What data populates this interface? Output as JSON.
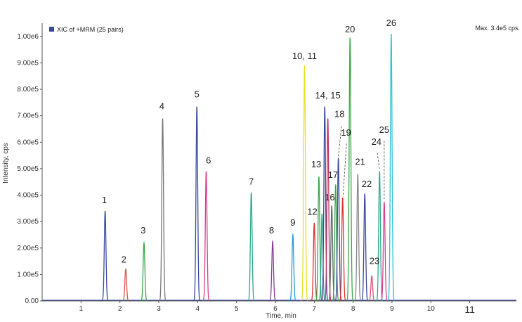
{
  "chart_data": {
    "type": "line",
    "legend": "XIC of +MRM (25 pairs)",
    "max_label": "Max. 3.4e5 cps.",
    "xlabel": "Time, min",
    "ylabel": "Intensity, cps",
    "xlim": [
      0,
      12.2
    ],
    "ylim": [
      0,
      1050000
    ],
    "x_ticks": [
      "1",
      "2",
      "3",
      "4",
      "5",
      "6",
      "7",
      "8",
      "9",
      "10",
      "11"
    ],
    "highlight_tick": "11",
    "highlight_color": "#c0392b",
    "y_ticks": [
      "0.00",
      "1.00e5",
      "2.00e5",
      "3.00e5",
      "4.00e5",
      "5.00e5",
      "6.00e5",
      "7.00e5",
      "8.00e5",
      "9.00e5",
      "1.00e6"
    ],
    "peaks": [
      {
        "t": 1.62,
        "h": 340000,
        "color": "#3a4a9c"
      },
      {
        "t": 2.15,
        "h": 120000,
        "color": "#e05050"
      },
      {
        "t": 2.62,
        "h": 220000,
        "color": "#3aa84a"
      },
      {
        "t": 3.1,
        "h": 690000,
        "color": "#777777"
      },
      {
        "t": 3.98,
        "h": 735000,
        "color": "#3a4a9c"
      },
      {
        "t": 4.22,
        "h": 490000,
        "color": "#d8408a"
      },
      {
        "t": 5.38,
        "h": 410000,
        "color": "#2aa88f"
      },
      {
        "t": 5.93,
        "h": 225000,
        "color": "#8a3c9a"
      },
      {
        "t": 6.45,
        "h": 250000,
        "color": "#2a9ad8"
      },
      {
        "t": 6.75,
        "h": 890000,
        "color": "#e8e020"
      },
      {
        "t": 7.0,
        "h": 295000,
        "color": "#e03030"
      },
      {
        "t": 7.12,
        "h": 470000,
        "color": "#3aa84a"
      },
      {
        "t": 7.2,
        "h": 330000,
        "color": "#2aa88f"
      },
      {
        "t": 7.27,
        "h": 735000,
        "color": "#3a4a9c"
      },
      {
        "t": 7.35,
        "h": 690000,
        "color": "#c0305a"
      },
      {
        "t": 7.45,
        "h": 360000,
        "color": "#666666"
      },
      {
        "t": 7.55,
        "h": 440000,
        "color": "#3aa84a"
      },
      {
        "t": 7.62,
        "h": 540000,
        "color": "#3a4a9c"
      },
      {
        "t": 7.73,
        "h": 390000,
        "color": "#e03030"
      },
      {
        "t": 7.92,
        "h": 995000,
        "color": "#3aa84a"
      },
      {
        "t": 8.12,
        "h": 480000,
        "color": "#888888"
      },
      {
        "t": 8.3,
        "h": 405000,
        "color": "#3a4a9c"
      },
      {
        "t": 8.48,
        "h": 95000,
        "color": "#e05070"
      },
      {
        "t": 8.68,
        "h": 490000,
        "color": "#2aa88f"
      },
      {
        "t": 8.8,
        "h": 375000,
        "color": "#d8408a"
      },
      {
        "t": 8.98,
        "h": 1010000,
        "color": "#30c0d8"
      }
    ],
    "labels": [
      {
        "text": "1",
        "t": 1.6,
        "v": 370000
      },
      {
        "text": "2",
        "t": 2.1,
        "v": 145000
      },
      {
        "text": "3",
        "t": 2.6,
        "v": 255000
      },
      {
        "text": "4",
        "t": 3.08,
        "v": 725000
      },
      {
        "text": "5",
        "t": 3.98,
        "v": 770000
      },
      {
        "text": "6",
        "t": 4.28,
        "v": 520000
      },
      {
        "text": "7",
        "t": 5.38,
        "v": 440000
      },
      {
        "text": "8",
        "t": 5.9,
        "v": 255000
      },
      {
        "text": "9",
        "t": 6.45,
        "v": 285000
      },
      {
        "text": "10, 11",
        "t": 6.75,
        "v": 915000
      },
      {
        "text": "12",
        "t": 6.95,
        "v": 325000
      },
      {
        "text": "13",
        "t": 7.05,
        "v": 505000
      },
      {
        "text": "14, 15",
        "t": 7.35,
        "v": 765000
      },
      {
        "text": "16",
        "t": 7.4,
        "v": 380000
      },
      {
        "text": "17",
        "t": 7.48,
        "v": 465000
      },
      {
        "text": "18",
        "t": 7.65,
        "v": 695000
      },
      {
        "text": "19",
        "t": 7.82,
        "v": 625000
      },
      {
        "text": "20",
        "t": 7.92,
        "v": 1015000
      },
      {
        "text": "21",
        "t": 8.18,
        "v": 515000
      },
      {
        "text": "22",
        "t": 8.35,
        "v": 430000
      },
      {
        "text": "23",
        "t": 8.55,
        "v": 140000
      },
      {
        "text": "24",
        "t": 8.6,
        "v": 590000
      },
      {
        "text": "25",
        "t": 8.8,
        "v": 635000
      },
      {
        "text": "26",
        "t": 8.98,
        "v": 1040000
      }
    ],
    "grid": false
  }
}
